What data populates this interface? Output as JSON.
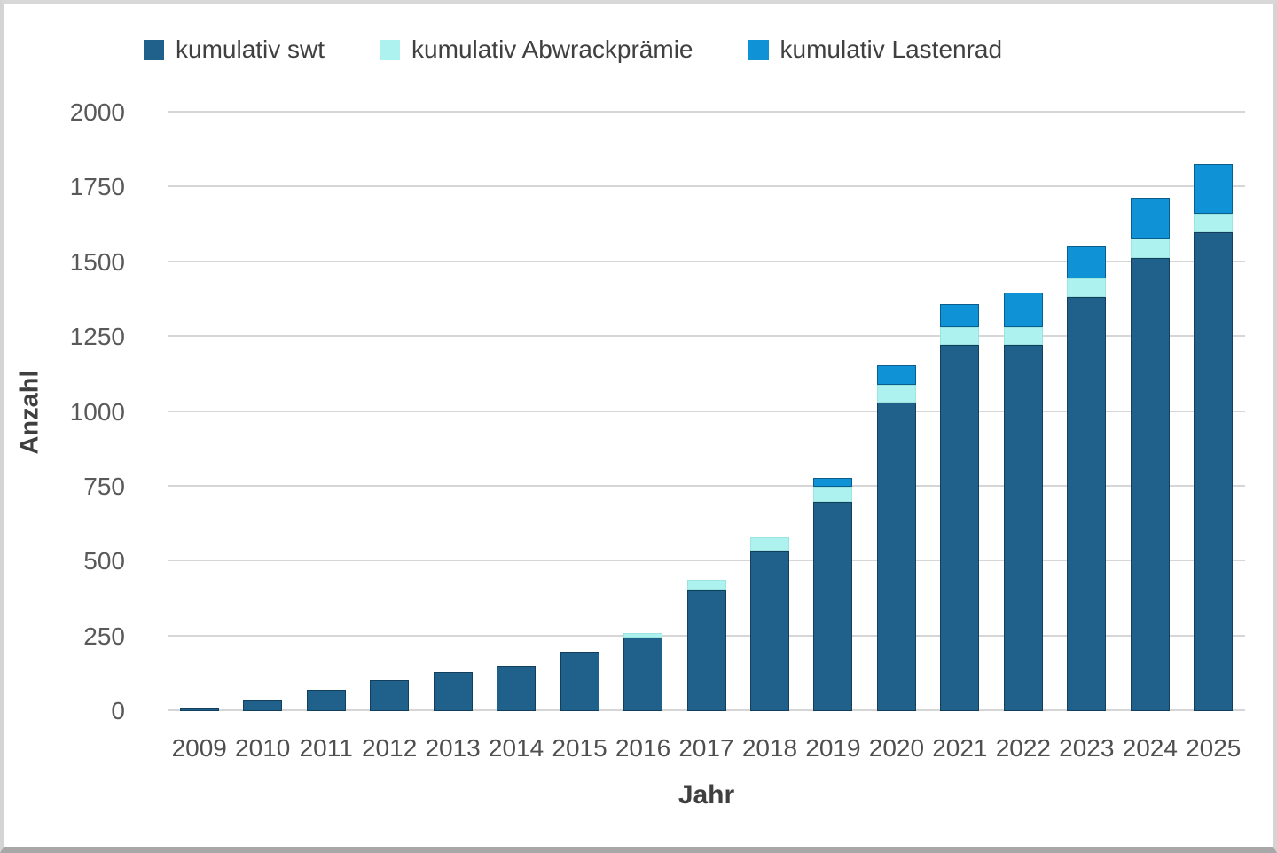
{
  "chart_data": {
    "type": "bar",
    "stacked": true,
    "title": "",
    "xlabel": "Jahr",
    "ylabel": "Anzahl",
    "ylim": [
      0,
      2000
    ],
    "yticks": [
      0,
      250,
      500,
      750,
      1000,
      1250,
      1500,
      1750,
      2000
    ],
    "grid": true,
    "legend_position": "top",
    "categories": [
      "2009",
      "2010",
      "2011",
      "2012",
      "2013",
      "2014",
      "2015",
      "2016",
      "2017",
      "2018",
      "2019",
      "2020",
      "2021",
      "2022",
      "2023",
      "2024",
      "2025"
    ],
    "series": [
      {
        "name": "kumulativ swt",
        "color": "#20618C",
        "border_color": "#123F5C",
        "values": [
          10,
          35,
          70,
          103,
          130,
          150,
          200,
          245,
          405,
          535,
          700,
          1030,
          1225,
          1225,
          1385,
          1515,
          1600
        ]
      },
      {
        "name": "kumulativ Abwrackprämie",
        "color": "#ADF2EE",
        "border_color": "#9CE4E0",
        "values": [
          0,
          0,
          0,
          0,
          0,
          0,
          0,
          15,
          35,
          45,
          50,
          60,
          57,
          57,
          60,
          65,
          62
        ]
      },
      {
        "name": "kumulativ Lastenrad",
        "color": "#0F93D6",
        "border_color": "#0A5E8C",
        "values": [
          0,
          0,
          0,
          0,
          0,
          0,
          0,
          0,
          0,
          0,
          30,
          65,
          78,
          118,
          110,
          135,
          165
        ]
      }
    ]
  },
  "colors": {
    "background": "#ffffff",
    "gridline": "#d6d6d6",
    "tick_text": "#595959",
    "axis_title_text": "#3f3f3f",
    "frame_border": "#d4d4d4",
    "frame_border_bottom": "#a8a8a8"
  }
}
